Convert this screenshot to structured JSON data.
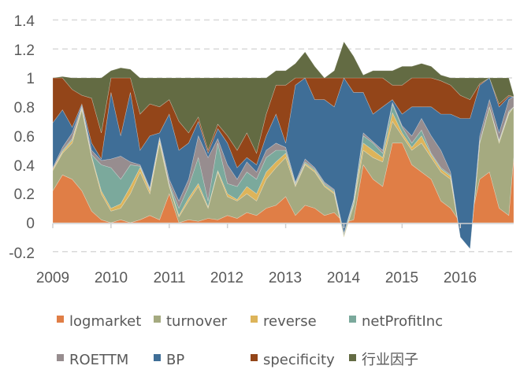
{
  "chart_data": {
    "type": "area",
    "stacked": true,
    "title": "",
    "xlabel": "",
    "ylabel": "",
    "ylim": [
      -0.2,
      1.4
    ],
    "yticks": [
      "1.4",
      "1.2",
      "1",
      "0.8",
      "0.6",
      "0.4",
      "0.2",
      "0",
      "-0.2"
    ],
    "xticks": [
      "2009",
      "2010",
      "2011",
      "2012",
      "2013",
      "2014",
      "2015",
      "2016"
    ],
    "grid": "horizontal dashed",
    "legend_position": "bottom",
    "x": [
      "2009-01",
      "2009-03",
      "2009-05",
      "2009-07",
      "2009-09",
      "2009-11",
      "2010-01",
      "2010-03",
      "2010-05",
      "2010-07",
      "2010-09",
      "2010-11",
      "2011-01",
      "2011-03",
      "2011-05",
      "2011-07",
      "2011-09",
      "2011-11",
      "2012-01",
      "2012-03",
      "2012-05",
      "2012-07",
      "2012-09",
      "2012-11",
      "2013-01",
      "2013-03",
      "2013-05",
      "2013-07",
      "2013-09",
      "2013-11",
      "2014-01",
      "2014-03",
      "2014-05",
      "2014-07",
      "2014-09",
      "2014-11",
      "2015-01",
      "2015-03",
      "2015-05",
      "2015-07",
      "2015-09",
      "2015-11",
      "2016-01",
      "2016-03",
      "2016-05",
      "2016-07",
      "2016-09",
      "2016-11",
      "2016-12"
    ],
    "series": [
      {
        "name": "logmarket",
        "color": "#E07E46",
        "values": [
          0.22,
          0.33,
          0.3,
          0.22,
          0.08,
          0.02,
          0,
          0.02,
          0,
          0.02,
          0.05,
          0.02,
          0.2,
          0,
          0.02,
          0.01,
          0.03,
          0.02,
          0.05,
          0.03,
          0.07,
          0.05,
          0.1,
          0.12,
          0.18,
          0.05,
          0.12,
          0.1,
          0.05,
          0.07,
          0,
          0.02,
          0.4,
          0.3,
          0.25,
          0.55,
          0.55,
          0.4,
          0.35,
          0.3,
          0.15,
          0.1,
          0,
          0,
          0.3,
          0.35,
          0.1,
          0.05,
          0.45
        ]
      },
      {
        "name": "turnover",
        "color": "#A5AA80",
        "values": [
          0.14,
          0.15,
          0.25,
          0.56,
          0.37,
          0.18,
          0.08,
          0.08,
          0.2,
          0.33,
          0.15,
          0.53,
          0.05,
          0.04,
          0.13,
          0.24,
          0.07,
          0.33,
          0.13,
          0.12,
          0.13,
          0.1,
          0.2,
          0.26,
          0.27,
          0.2,
          0.28,
          0.25,
          0.2,
          0.13,
          -0.1,
          0.1,
          0.1,
          0.15,
          0.17,
          0.15,
          0.05,
          0.1,
          0.2,
          0.15,
          0.2,
          0.2,
          -0.1,
          -0.18,
          0.25,
          0.45,
          0.45,
          0.7,
          0.35
        ]
      },
      {
        "name": "reverse",
        "color": "#DDB45A",
        "values": [
          0.01,
          0.01,
          0.02,
          0.01,
          0.01,
          0.02,
          0.02,
          0.03,
          0.05,
          0.03,
          0.02,
          0.02,
          0.01,
          0.01,
          0.02,
          0.02,
          0.01,
          0.01,
          0.02,
          0.01,
          0.05,
          0.05,
          0.05,
          0.04,
          0.03,
          0.01,
          0.01,
          0.01,
          0.01,
          0.01,
          0.01,
          0.01,
          0.05,
          0.05,
          0.03,
          0.06,
          0.02,
          0.02,
          0.05,
          0.02,
          0.02,
          0.02,
          0,
          0,
          0,
          0,
          0.01,
          0.01,
          0
        ]
      },
      {
        "name": "netProfitInc",
        "color": "#7BA99C",
        "values": [
          0,
          0.01,
          0.01,
          0.01,
          0.01,
          0.18,
          0.28,
          0.17,
          0.15,
          0.01,
          0.01,
          0.01,
          0.01,
          0.05,
          0.08,
          0.18,
          0.04,
          0.19,
          0.07,
          0.09,
          0.1,
          0.1,
          0.1,
          0.08,
          0.02,
          0.01,
          0.01,
          0.01,
          0.01,
          0.01,
          0.01,
          0.02,
          0.05,
          0.05,
          0.03,
          0.06,
          0.04,
          0.03,
          0.04,
          0.01,
          0.01,
          0.01,
          0,
          0,
          0.01,
          0,
          0.01,
          0.01,
          0
        ]
      },
      {
        "name": "ROETTM",
        "color": "#978D8F",
        "values": [
          0.01,
          0.02,
          0.04,
          0.01,
          0.03,
          0.03,
          0.06,
          0.16,
          0.02,
          0.01,
          0.01,
          0.01,
          0.03,
          0.05,
          0.05,
          0.15,
          0.3,
          0.03,
          0.13,
          0.05,
          0.07,
          0.05,
          0.05,
          0.05,
          0.02,
          0.01,
          0.02,
          0.01,
          0.01,
          0.01,
          0.01,
          0.01,
          0.02,
          0.01,
          0.02,
          0.01,
          0.01,
          0.05,
          0.08,
          0.12,
          0.12,
          0.02,
          0,
          0,
          0.04,
          0.05,
          0.05,
          0.08,
          0.07
        ]
      },
      {
        "name": "BP",
        "color": "#3F6E97",
        "values": [
          0.31,
          0.26,
          0.04,
          0.01,
          0.05,
          0.01,
          0.46,
          0.14,
          0.48,
          0.1,
          0.36,
          0.03,
          0.45,
          0.35,
          0.25,
          0.1,
          0.03,
          0.07,
          0.15,
          0.08,
          0.03,
          0.05,
          0.1,
          0.2,
          0.03,
          0.67,
          0.56,
          0.47,
          0.57,
          0.57,
          1.07,
          0.74,
          0.28,
          0.19,
          0.3,
          0.02,
          0.08,
          0.2,
          0.08,
          0.2,
          0.25,
          0.4,
          0.82,
          0.9,
          0.35,
          0.15,
          0.18,
          0.02,
          0
        ]
      },
      {
        "name": "specificity",
        "color": "#934519",
        "values": [
          0.31,
          0.22,
          0.26,
          0.06,
          0.31,
          0.18,
          0.1,
          0.4,
          0.1,
          0.25,
          0.22,
          0.18,
          0.1,
          0.2,
          0.07,
          0.03,
          0.02,
          0.03,
          0.05,
          0.12,
          0.17,
          0.08,
          0.15,
          0.2,
          0.4,
          0.05,
          0,
          0.15,
          0.15,
          0.2,
          0,
          0.1,
          0.1,
          0.25,
          0.2,
          0.1,
          0.2,
          0.2,
          0.2,
          0.2,
          0.23,
          0.2,
          0.16,
          0.13,
          0.01,
          0,
          0.02,
          0.01,
          0
        ]
      },
      {
        "name": "行业因子",
        "color": "#636B43",
        "values": [
          0,
          0.01,
          0.08,
          0.12,
          0.14,
          0.38,
          0.05,
          0.07,
          0.06,
          0.25,
          0.18,
          0.2,
          0.15,
          0.3,
          0.38,
          0.27,
          0.5,
          0.32,
          0.4,
          0.5,
          0.38,
          0.52,
          0.25,
          0.1,
          0.1,
          0.1,
          0.18,
          0.08,
          0,
          0.05,
          0.25,
          0.15,
          0.02,
          0.05,
          0.05,
          0.1,
          0.13,
          0.08,
          0.1,
          0.08,
          0.04,
          0.05,
          0.12,
          0.15,
          0.04,
          0,
          0.18,
          0.12,
          0.01
        ]
      }
    ]
  }
}
